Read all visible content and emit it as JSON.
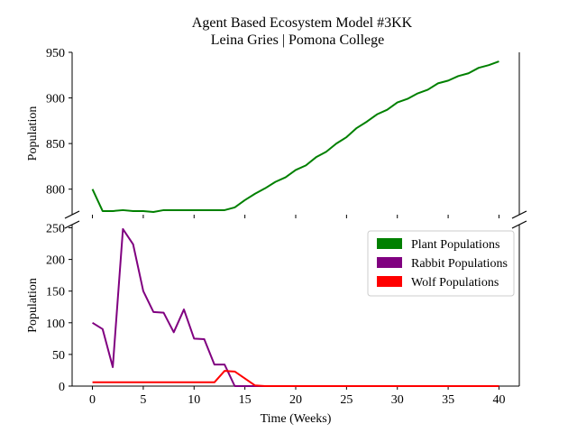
{
  "title": "Agent Based Ecosystem Model #3KK",
  "subtitle": "Leina Gries | Pomona College",
  "chart_data": {
    "type": "line",
    "title": "Agent Based Ecosystem Model #3KK",
    "subtitle": "Leina Gries | Pomona College",
    "xlabel": "Time (Weeks)",
    "ylabel": "Population",
    "broken_axis": true,
    "xlim": [
      -2,
      42
    ],
    "x_ticks": [
      0,
      5,
      10,
      15,
      20,
      25,
      30,
      35,
      40
    ],
    "top_panel": {
      "ylim": [
        772,
        950
      ],
      "y_ticks": [
        800,
        850,
        900,
        950
      ]
    },
    "bottom_panel": {
      "ylim": [
        0,
        255
      ],
      "y_ticks": [
        0,
        50,
        100,
        150,
        200,
        250
      ]
    },
    "legend_position": "top-right",
    "x": [
      0,
      1,
      2,
      3,
      4,
      5,
      6,
      7,
      8,
      9,
      10,
      11,
      12,
      13,
      14,
      15,
      16,
      17,
      18,
      19,
      20,
      21,
      22,
      23,
      24,
      25,
      26,
      27,
      28,
      29,
      30,
      31,
      32,
      33,
      34,
      35,
      36,
      37,
      38,
      39,
      40
    ],
    "series": [
      {
        "name": "Plant Populations",
        "color": "#008000",
        "panel": "top",
        "values": [
          800,
          776,
          776,
          777,
          776,
          776,
          775,
          777,
          777,
          777,
          777,
          777,
          777,
          777,
          780,
          788,
          795,
          801,
          808,
          813,
          821,
          826,
          835,
          841,
          850,
          857,
          867,
          874,
          882,
          887,
          895,
          899,
          905,
          909,
          916,
          919,
          924,
          927,
          933,
          936,
          940
        ]
      },
      {
        "name": "Rabbit Populations",
        "color": "#800080",
        "panel": "bottom",
        "values": [
          100,
          90,
          30,
          248,
          224,
          150,
          117,
          116,
          85,
          121,
          75,
          74,
          34,
          34,
          0,
          0,
          0,
          0,
          0,
          0,
          0,
          0,
          0,
          0,
          0,
          0,
          0,
          0,
          0,
          0,
          0,
          0,
          0,
          0,
          0,
          0,
          0,
          0,
          0,
          0,
          0
        ]
      },
      {
        "name": "Wolf Populations",
        "color": "#ff0000",
        "panel": "bottom",
        "values": [
          6,
          6,
          6,
          6,
          6,
          6,
          6,
          6,
          6,
          6,
          6,
          6,
          6,
          24,
          23,
          12,
          1,
          0,
          0,
          0,
          0,
          0,
          0,
          0,
          0,
          0,
          0,
          0,
          0,
          0,
          0,
          0,
          0,
          0,
          0,
          0,
          0,
          0,
          0,
          0,
          0
        ]
      }
    ]
  }
}
